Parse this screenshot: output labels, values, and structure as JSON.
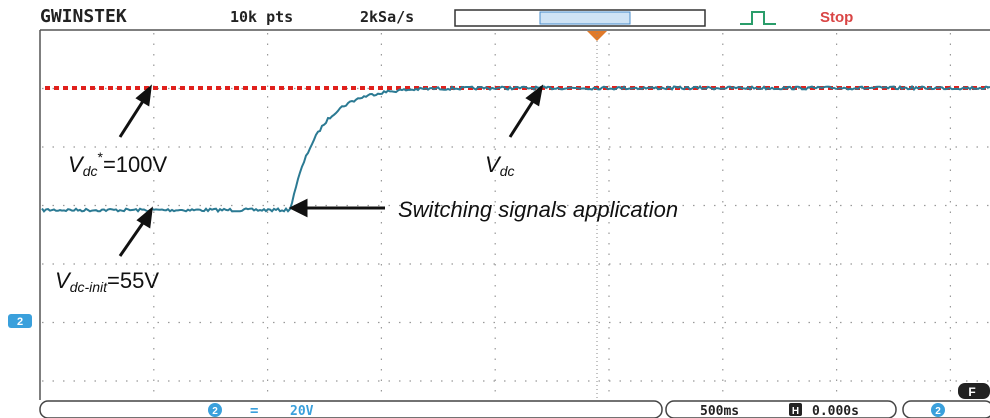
{
  "header": {
    "brand": "GWINSTEK",
    "memory": "10k pts",
    "sample_rate": "2kSa/s",
    "status": "Stop"
  },
  "channel_marker": "2",
  "annotations": {
    "reference": {
      "main": "V",
      "sub": "dc",
      "sup": "*",
      "rest": "=100V"
    },
    "measured": {
      "main": "V",
      "sub": "dc"
    },
    "event": "Switching signals application",
    "initial": {
      "main": "V",
      "sub": "dc-init",
      "rest": "=55V"
    }
  },
  "footer": {
    "channel": "2",
    "coupling": "=",
    "scale": "20V",
    "timebase": "500ms",
    "h_icon": "H",
    "position": "0.000s",
    "channel2": "2",
    "function_key": "F"
  }
}
